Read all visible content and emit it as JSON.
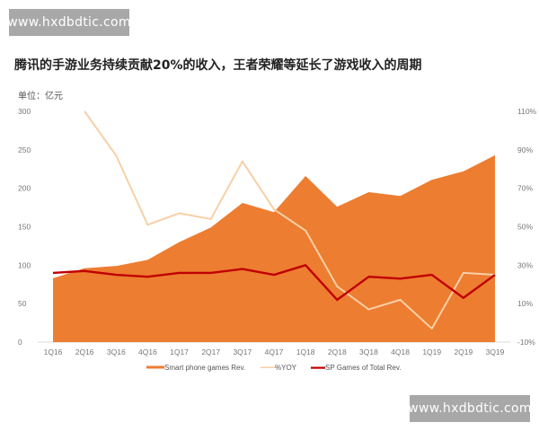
{
  "watermark": "www.hxdbdtic.com",
  "chart_data": {
    "type": "area+line",
    "title": "腾讯的手游业务持续贡献20%的收入，王者荣耀等延长了游戏收入的周期",
    "unit_label": "单位：亿元",
    "categories": [
      "1Q16",
      "2Q16",
      "3Q16",
      "4Q16",
      "1Q17",
      "2Q17",
      "3Q17",
      "4Q17",
      "1Q18",
      "2Q18",
      "3Q18",
      "4Q18",
      "1Q19",
      "2Q19",
      "3Q19"
    ],
    "left_axis": {
      "ylim": [
        0,
        300
      ],
      "ticks": [
        "0",
        "50",
        "100",
        "150",
        "200",
        "250",
        "300"
      ]
    },
    "right_axis": {
      "ylim": [
        -10,
        110
      ],
      "ticks": [
        "-10%",
        "10%",
        "30%",
        "50%",
        "70%",
        "90%",
        "110%"
      ]
    },
    "grid": false,
    "legend_position": "bottom",
    "series": [
      {
        "name": "Smart phone games Rev.",
        "type": "area",
        "axis": "left",
        "color": "#ed7d31",
        "values": [
          83,
          96,
          99,
          107,
          130,
          149,
          181,
          169,
          216,
          176,
          195,
          190,
          211,
          222,
          243
        ]
      },
      {
        "name": "%YOY",
        "type": "line",
        "axis": "right",
        "color": "#f8cfa6",
        "values": [
          null,
          110,
          87,
          51,
          57,
          54,
          84,
          59,
          48,
          19,
          7,
          12,
          -3,
          26,
          25
        ]
      },
      {
        "name": "SP Games of Total Rev.",
        "type": "line",
        "axis": "right",
        "color": "#c00000",
        "values": [
          26,
          27,
          25,
          24,
          26,
          26,
          28,
          25,
          30,
          12,
          24,
          23,
          25,
          13,
          25
        ]
      }
    ]
  }
}
